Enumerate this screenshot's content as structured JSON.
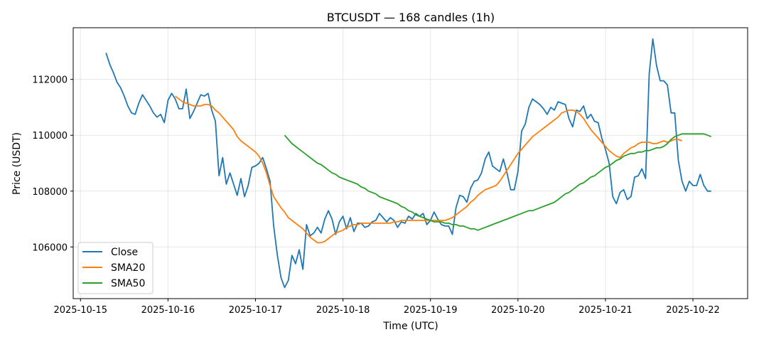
{
  "chart_data": {
    "type": "line",
    "title": "BTCUSDT — 168 candles (1h)",
    "xlabel": "Time (UTC)",
    "ylabel": "Price (USDT)",
    "x_start": "2025-10-15 07:00",
    "x_step_hours": 1,
    "xlim": [
      "2025-10-14 22:00",
      "2025-10-22 15:00"
    ],
    "ylim": [
      104150,
      113850
    ],
    "x_ticks": [
      "2025-10-15",
      "2025-10-16",
      "2025-10-17",
      "2025-10-18",
      "2025-10-19",
      "2025-10-20",
      "2025-10-21",
      "2025-10-22"
    ],
    "y_ticks": [
      106000,
      108000,
      110000,
      112000
    ],
    "y_tick_labels": [
      "106000",
      "108000",
      "110000",
      "112000"
    ],
    "grid": true,
    "legend_position": "lower-left",
    "series": [
      {
        "name": "Close",
        "color": "#1f77b4",
        "start_index": 0,
        "values": [
          112950,
          112550,
          112250,
          111900,
          111700,
          111400,
          111050,
          110800,
          110750,
          111150,
          111450,
          111250,
          111050,
          110800,
          110650,
          110750,
          110450,
          111250,
          111500,
          111300,
          110950,
          110950,
          111650,
          110600,
          110850,
          111150,
          111450,
          111400,
          111500,
          110900,
          110500,
          108550,
          109200,
          108250,
          108650,
          108250,
          107850,
          108450,
          107800,
          108200,
          108850,
          108900,
          109000,
          109200,
          108800,
          108350,
          106750,
          105700,
          104900,
          104550,
          104800,
          105700,
          105400,
          105900,
          105200,
          106800,
          106400,
          106500,
          106700,
          106500,
          107000,
          107300,
          107000,
          106450,
          106900,
          107100,
          106650,
          107050,
          106550,
          106850,
          106850,
          106700,
          106750,
          106900,
          106950,
          107200,
          107050,
          106900,
          107050,
          106950,
          106700,
          106900,
          106850,
          107100,
          107000,
          107200,
          107100,
          107200,
          106800,
          106950,
          107250,
          107000,
          106800,
          106750,
          106750,
          106450,
          107400,
          107850,
          107800,
          107600,
          108100,
          108350,
          108400,
          108650,
          109150,
          109400,
          108900,
          108800,
          108700,
          109150,
          108650,
          108050,
          108050,
          108700,
          110150,
          110400,
          111000,
          111300,
          111200,
          111100,
          110950,
          110750,
          111000,
          110900,
          111200,
          111150,
          111100,
          110600,
          110300,
          110900,
          110850,
          111050,
          110600,
          110750,
          110500,
          110450,
          109900,
          109500,
          109000,
          107800,
          107550,
          107950,
          108050,
          107700,
          107800,
          108500,
          108550,
          108800,
          108450,
          112200,
          113450,
          112500,
          111950,
          111950,
          111800,
          110800,
          110800,
          109100,
          108350,
          108000,
          108350,
          108200,
          108200,
          108600,
          108200,
          108000,
          108000
        ]
      },
      {
        "name": "SMA20",
        "color": "#ff7f0e",
        "start_index": 19,
        "values": [
          111400,
          111300,
          111200,
          111150,
          111100,
          111050,
          111050,
          111050,
          111100,
          111100,
          111050,
          110900,
          110800,
          110650,
          110500,
          110350,
          110200,
          109950,
          109800,
          109700,
          109600,
          109500,
          109400,
          109250,
          109000,
          108650,
          108200,
          107800,
          107600,
          107400,
          107250,
          107050,
          106950,
          106850,
          106750,
          106650,
          106500,
          106350,
          106250,
          106150,
          106150,
          106200,
          106300,
          106400,
          106500,
          106550,
          106600,
          106700,
          106750,
          106800,
          106800,
          106850,
          106850,
          106850,
          106850,
          106850,
          106850,
          106850,
          106850,
          106850,
          106900,
          106900,
          106950,
          106950,
          106950,
          106950,
          106950,
          106950,
          106950,
          106950,
          106950,
          106950,
          106950,
          106950,
          106950,
          107000,
          107050,
          107150,
          107250,
          107350,
          107450,
          107600,
          107700,
          107850,
          107950,
          108050,
          108100,
          108150,
          108200,
          108350,
          108550,
          108750,
          108950,
          109150,
          109350,
          109500,
          109650,
          109800,
          109950,
          110050,
          110150,
          110250,
          110350,
          110450,
          110550,
          110650,
          110800,
          110850,
          110900,
          110900,
          110850,
          110750,
          110600,
          110400,
          110200,
          110050,
          109900,
          109750,
          109600,
          109450,
          109350,
          109250,
          109200,
          109350,
          109450,
          109550,
          109600,
          109700,
          109750,
          109750,
          109750,
          109700,
          109700,
          109750,
          109800,
          109750,
          109800,
          109850,
          109850,
          109800
        ]
      },
      {
        "name": "SMA50",
        "color": "#2ca02c",
        "start_index": 49,
        "values": [
          110000,
          109850,
          109700,
          109600,
          109500,
          109400,
          109300,
          109200,
          109100,
          109000,
          108950,
          108850,
          108750,
          108650,
          108600,
          108500,
          108450,
          108400,
          108350,
          108300,
          108250,
          108150,
          108100,
          108000,
          107950,
          107900,
          107800,
          107750,
          107700,
          107650,
          107600,
          107550,
          107450,
          107400,
          107300,
          107250,
          107150,
          107100,
          107050,
          107000,
          106950,
          106900,
          106900,
          106900,
          106850,
          106850,
          106800,
          106800,
          106750,
          106750,
          106700,
          106650,
          106650,
          106600,
          106650,
          106700,
          106750,
          106800,
          106850,
          106900,
          106950,
          107000,
          107050,
          107100,
          107150,
          107200,
          107250,
          107300,
          107300,
          107350,
          107400,
          107450,
          107500,
          107550,
          107600,
          107700,
          107800,
          107900,
          107950,
          108050,
          108150,
          108250,
          108300,
          108400,
          108500,
          108550,
          108650,
          108750,
          108850,
          108900,
          109000,
          109100,
          109150,
          109250,
          109300,
          109350,
          109350,
          109400,
          109400,
          109450,
          109450,
          109500,
          109550,
          109550,
          109600,
          109700,
          109850,
          109950,
          110000,
          110050,
          110050,
          110050,
          110050,
          110050,
          110050,
          110050,
          110000,
          109950
        ]
      }
    ]
  }
}
